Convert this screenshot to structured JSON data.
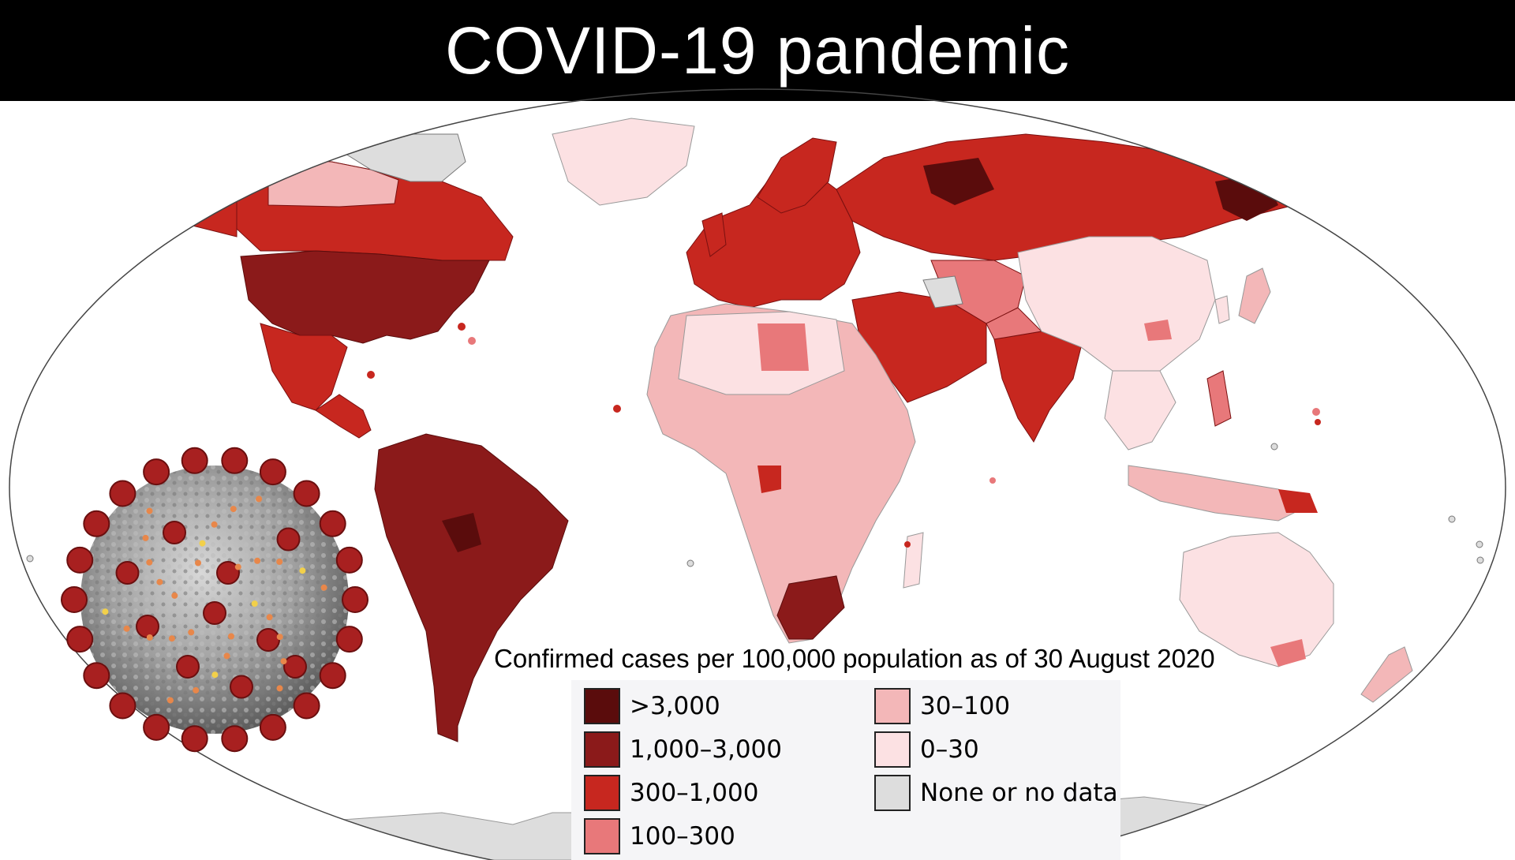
{
  "header": {
    "title": "COVID-19 pandemic"
  },
  "map": {
    "subtitle": "Confirmed cases per 100,000 population as of 30 August 2020",
    "ocean_color": "#ffffff",
    "legend": [
      {
        "label": ">3,000",
        "color": "#5a0c0c"
      },
      {
        "label": "1,000–3,000",
        "color": "#8b1a1a"
      },
      {
        "label": "300–1,000",
        "color": "#c7271f"
      },
      {
        "label": "100–300",
        "color": "#e8787a"
      },
      {
        "label": "30–100",
        "color": "#f3b7b8"
      },
      {
        "label": "0–30",
        "color": "#fce1e3"
      },
      {
        "label": "None or no data",
        "color": "#dddddd"
      }
    ]
  },
  "image": {
    "virus_illustration": "coronavirus-particle"
  }
}
